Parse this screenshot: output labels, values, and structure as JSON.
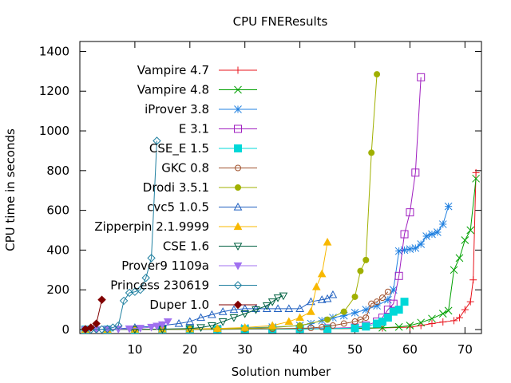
{
  "chart_data": {
    "type": "line",
    "title": "CPU FNEResults",
    "xlabel": "Solution number",
    "ylabel": "CPU time in seconds",
    "xlim": [
      0,
      73
    ],
    "ylim": [
      -20,
      1450
    ],
    "xticks": [
      10,
      20,
      30,
      40,
      50,
      60,
      70
    ],
    "yticks": [
      0,
      200,
      400,
      600,
      800,
      1000,
      1200,
      1400
    ],
    "grid": false,
    "legend_position": "top-left",
    "series": [
      {
        "name": "Vampire 4.7",
        "color": "#e8141c",
        "marker": "plus",
        "x": [
          1,
          5,
          10,
          15,
          20,
          25,
          30,
          35,
          40,
          45,
          50,
          55,
          60,
          62,
          64,
          66,
          68,
          69,
          70,
          71,
          71.5,
          72
        ],
        "y": [
          0,
          0,
          0,
          1,
          1,
          1,
          2,
          2,
          3,
          4,
          5,
          8,
          12,
          20,
          30,
          38,
          45,
          60,
          100,
          140,
          250,
          790
        ]
      },
      {
        "name": "Vampire 4.8",
        "color": "#00a000",
        "marker": "x",
        "x": [
          1,
          5,
          10,
          15,
          20,
          25,
          30,
          35,
          40,
          45,
          50,
          55,
          58,
          60,
          62,
          64,
          66,
          67,
          68,
          69,
          70,
          71,
          72
        ],
        "y": [
          0,
          0,
          1,
          1,
          1,
          2,
          2,
          3,
          3,
          4,
          6,
          9,
          13,
          20,
          35,
          55,
          80,
          95,
          300,
          360,
          450,
          500,
          760
        ]
      },
      {
        "name": "iProver 3.8",
        "color": "#2080e0",
        "marker": "star",
        "x": [
          1,
          5,
          10,
          15,
          20,
          25,
          30,
          35,
          40,
          42,
          44,
          46,
          48,
          50,
          52,
          54,
          56,
          57,
          58,
          59,
          60,
          61,
          62,
          63,
          64,
          65,
          66,
          67
        ],
        "y": [
          0,
          0,
          1,
          2,
          3,
          5,
          8,
          12,
          20,
          30,
          45,
          60,
          70,
          85,
          100,
          120,
          150,
          200,
          395,
          400,
          405,
          410,
          430,
          470,
          480,
          490,
          530,
          620
        ]
      },
      {
        "name": "E 3.1",
        "color": "#a020c0",
        "marker": "square",
        "x": [
          1,
          5,
          10,
          15,
          20,
          25,
          30,
          35,
          40,
          45,
          50,
          52,
          54,
          55,
          56,
          57,
          58,
          59,
          60,
          61,
          62
        ],
        "y": [
          0,
          0,
          0,
          1,
          1,
          2,
          2,
          3,
          4,
          6,
          10,
          20,
          40,
          60,
          100,
          130,
          270,
          480,
          590,
          790,
          1270
        ]
      },
      {
        "name": "CSE_E 1.5",
        "color": "#00d8d8",
        "marker": "filled-square",
        "x": [
          1,
          5,
          10,
          15,
          20,
          25,
          30,
          35,
          40,
          45,
          50,
          52,
          54,
          55,
          56,
          57,
          58,
          59
        ],
        "y": [
          0,
          0,
          0,
          1,
          1,
          1,
          2,
          2,
          3,
          4,
          7,
          15,
          30,
          40,
          60,
          90,
          100,
          140
        ]
      },
      {
        "name": "GKC 0.8",
        "color": "#a0522d",
        "marker": "circle",
        "x": [
          1,
          5,
          10,
          15,
          20,
          25,
          30,
          35,
          40,
          42,
          44,
          46,
          48,
          50,
          51,
          52,
          53,
          54,
          55,
          56
        ],
        "y": [
          0,
          0,
          0,
          1,
          1,
          2,
          3,
          4,
          6,
          8,
          12,
          20,
          30,
          40,
          50,
          60,
          130,
          140,
          160,
          190
        ]
      },
      {
        "name": "Drodi 3.5.1",
        "color": "#a0b000",
        "marker": "filled-circle",
        "x": [
          1,
          5,
          10,
          15,
          20,
          25,
          30,
          35,
          40,
          45,
          48,
          50,
          51,
          52,
          53,
          54
        ],
        "y": [
          0,
          0,
          1,
          1,
          2,
          3,
          5,
          10,
          20,
          50,
          90,
          165,
          295,
          350,
          890,
          1285
        ]
      },
      {
        "name": "cvc5 1.0.5",
        "color": "#2060c0",
        "marker": "triangle",
        "x": [
          1,
          5,
          10,
          15,
          18,
          20,
          22,
          24,
          26,
          28,
          30,
          32,
          34,
          36,
          38,
          40,
          42,
          44,
          45,
          46
        ],
        "y": [
          0,
          0,
          10,
          20,
          30,
          40,
          60,
          75,
          90,
          100,
          105,
          105,
          105,
          105,
          105,
          105,
          140,
          150,
          155,
          175
        ]
      },
      {
        "name": "Zipperpin 2.1.9999",
        "color": "#f8b800",
        "marker": "filled-triangle",
        "x": [
          1,
          5,
          10,
          15,
          20,
          25,
          30,
          35,
          38,
          40,
          42,
          43,
          44,
          45
        ],
        "y": [
          0,
          0,
          1,
          2,
          3,
          5,
          10,
          20,
          40,
          60,
          90,
          215,
          280,
          440
        ]
      },
      {
        "name": "CSE 1.6",
        "color": "#006040",
        "marker": "triangle-down",
        "x": [
          1,
          5,
          10,
          15,
          20,
          22,
          24,
          26,
          28,
          30,
          32,
          34,
          35,
          36,
          37
        ],
        "y": [
          0,
          0,
          1,
          2,
          5,
          10,
          20,
          40,
          60,
          80,
          100,
          120,
          140,
          160,
          170
        ]
      },
      {
        "name": "Prover9 1109a",
        "color": "#a070f0",
        "marker": "filled-triangle-down",
        "x": [
          1,
          3,
          5,
          7,
          9,
          11,
          13,
          14,
          15,
          16
        ],
        "y": [
          0,
          0,
          1,
          2,
          4,
          7,
          12,
          18,
          25,
          40
        ]
      },
      {
        "name": "Princess 230619",
        "color": "#2080a0",
        "marker": "diamond",
        "x": [
          1,
          2,
          3,
          4,
          5,
          6,
          7,
          8,
          9,
          10,
          11,
          12,
          13,
          14
        ],
        "y": [
          0,
          0,
          1,
          1,
          3,
          10,
          20,
          145,
          185,
          190,
          200,
          260,
          360,
          950
        ]
      },
      {
        "name": "Duper 1.0",
        "color": "#800000",
        "marker": "filled-diamond",
        "x": [
          1,
          2,
          3,
          4
        ],
        "y": [
          2,
          10,
          30,
          150
        ]
      }
    ]
  }
}
